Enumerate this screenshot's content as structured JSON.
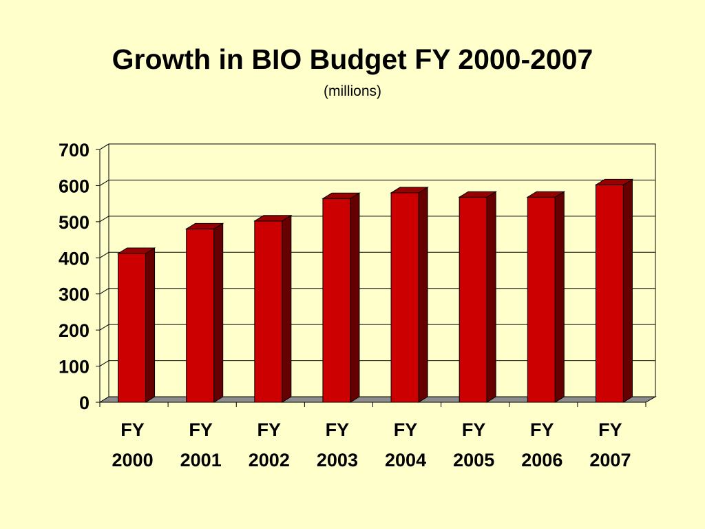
{
  "title": "Growth in BIO Budget FY 2000-2007",
  "subtitle": "(millions)",
  "colors": {
    "background": "#FFFFCC",
    "bar_front": "#CC0000",
    "bar_top": "#990000",
    "bar_side": "#660000",
    "floor": "#8C8C8C"
  },
  "chart_data": {
    "type": "bar",
    "style": "3d-column",
    "categories": [
      [
        "FY",
        "2000"
      ],
      [
        "FY",
        "2001"
      ],
      [
        "FY",
        "2002"
      ],
      [
        "FY",
        "2003"
      ],
      [
        "FY",
        "2004"
      ],
      [
        "FY",
        "2005"
      ],
      [
        "FY",
        "2006"
      ],
      [
        "FY",
        "2007"
      ]
    ],
    "values": [
      412,
      480,
      502,
      564,
      580,
      568,
      568,
      602
    ],
    "yticks": [
      "0",
      "100",
      "200",
      "300",
      "400",
      "500",
      "600",
      "700"
    ],
    "ylim": [
      0,
      700
    ],
    "grid": true,
    "legend": "none"
  }
}
